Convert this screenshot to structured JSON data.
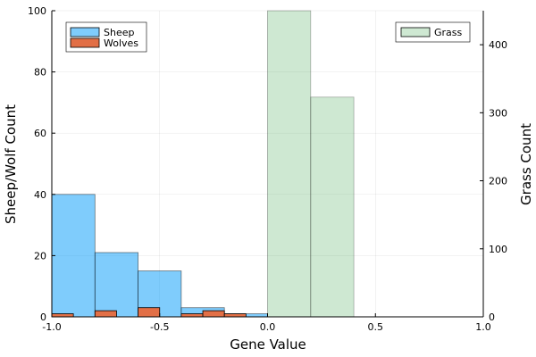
{
  "chart_data": {
    "type": "bar",
    "xlabel": "Gene Value",
    "ylabel_left": "Sheep/Wolf Count",
    "ylabel_right": "Grass Count",
    "xlim": [
      -1.0,
      1.0
    ],
    "ylim_left": [
      0,
      100
    ],
    "ylim_right": [
      0,
      450
    ],
    "x_ticks": [
      "-1.0",
      "-0.5",
      "0.0",
      "0.5",
      "1.0"
    ],
    "y_left_ticks": [
      "0",
      "20",
      "40",
      "60",
      "80",
      "100"
    ],
    "y_right_ticks": [
      "0",
      "100",
      "200",
      "300",
      "400"
    ],
    "grid": true,
    "legend_left_position": "top-left",
    "legend_right_position": "top-right",
    "series": [
      {
        "name": "Sheep",
        "axis": "left",
        "color": "#009af9",
        "bins": [
          {
            "x0": -1.0,
            "x1": -0.8,
            "count": 40
          },
          {
            "x0": -0.8,
            "x1": -0.6,
            "count": 21
          },
          {
            "x0": -0.6,
            "x1": -0.4,
            "count": 15
          },
          {
            "x0": -0.4,
            "x1": -0.2,
            "count": 3
          },
          {
            "x0": -0.2,
            "x1": 0.0,
            "count": 1
          }
        ]
      },
      {
        "name": "Wolves",
        "axis": "left",
        "color": "#e26f46",
        "bins": [
          {
            "x0": -1.0,
            "x1": -0.9,
            "count": 1
          },
          {
            "x0": -0.8,
            "x1": -0.7,
            "count": 2
          },
          {
            "x0": -0.6,
            "x1": -0.5,
            "count": 3
          },
          {
            "x0": -0.4,
            "x1": -0.3,
            "count": 1
          },
          {
            "x0": -0.3,
            "x1": -0.2,
            "count": 2
          },
          {
            "x0": -0.2,
            "x1": -0.1,
            "count": 1
          }
        ]
      },
      {
        "name": "Grass",
        "axis": "right",
        "color": "#3da44d",
        "bins": [
          {
            "x0": 0.0,
            "x1": 0.2,
            "count": 450
          },
          {
            "x0": 0.2,
            "x1": 0.4,
            "count": 323
          }
        ]
      }
    ]
  }
}
